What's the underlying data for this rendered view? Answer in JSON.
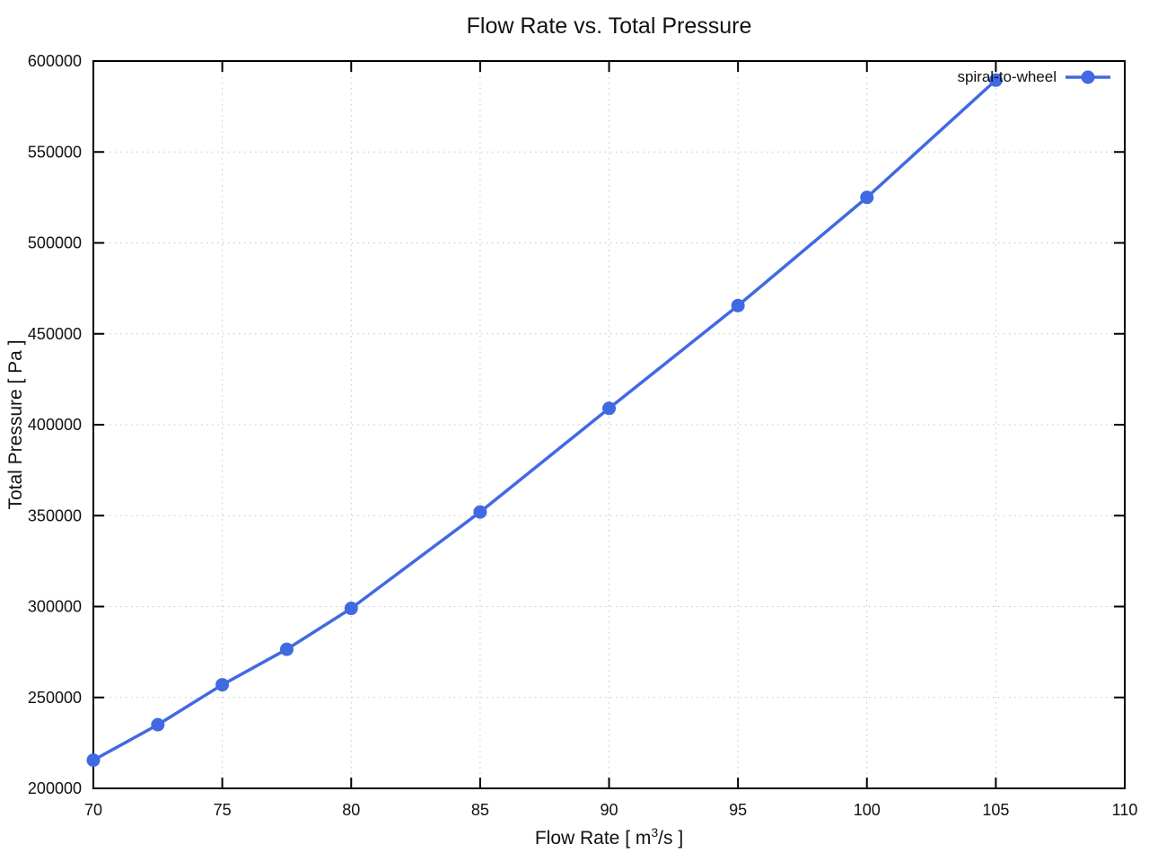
{
  "title": "Flow Rate vs. Total Pressure",
  "axes": {
    "xlabel_pre": "Flow Rate [ m",
    "xlabel_sup": "3",
    "xlabel_post": "/s ]",
    "ylabel": "Total Pressure [ Pa ]"
  },
  "legend": {
    "label": "spiral-to-wheel"
  },
  "colors": {
    "series": "#4169e1",
    "grid": "#c4c4c4",
    "axis": "#000000",
    "background": "#ffffff"
  },
  "chart_data": {
    "type": "line",
    "title": "Flow Rate vs. Total Pressure",
    "xlabel": "Flow Rate [ m³/s ]",
    "ylabel": "Total Pressure [ Pa ]",
    "xlim": [
      70,
      110
    ],
    "ylim": [
      200000,
      600000
    ],
    "x_ticks": [
      70,
      75,
      80,
      85,
      90,
      95,
      100,
      105,
      110
    ],
    "y_ticks": [
      200000,
      250000,
      300000,
      350000,
      400000,
      450000,
      500000,
      550000,
      600000
    ],
    "grid": true,
    "grid_style": "dotted",
    "legend_position": "top-right-inside",
    "series": [
      {
        "name": "spiral-to-wheel",
        "color": "#4169e1",
        "marker": "circle",
        "line_width": 3.5,
        "marker_radius": 7.5,
        "x": [
          70,
          72.5,
          75,
          77.5,
          80,
          85,
          90,
          95,
          100,
          105
        ],
        "y": [
          215500,
          235000,
          257000,
          276500,
          299000,
          352000,
          409000,
          465500,
          525000,
          589500
        ]
      }
    ]
  }
}
